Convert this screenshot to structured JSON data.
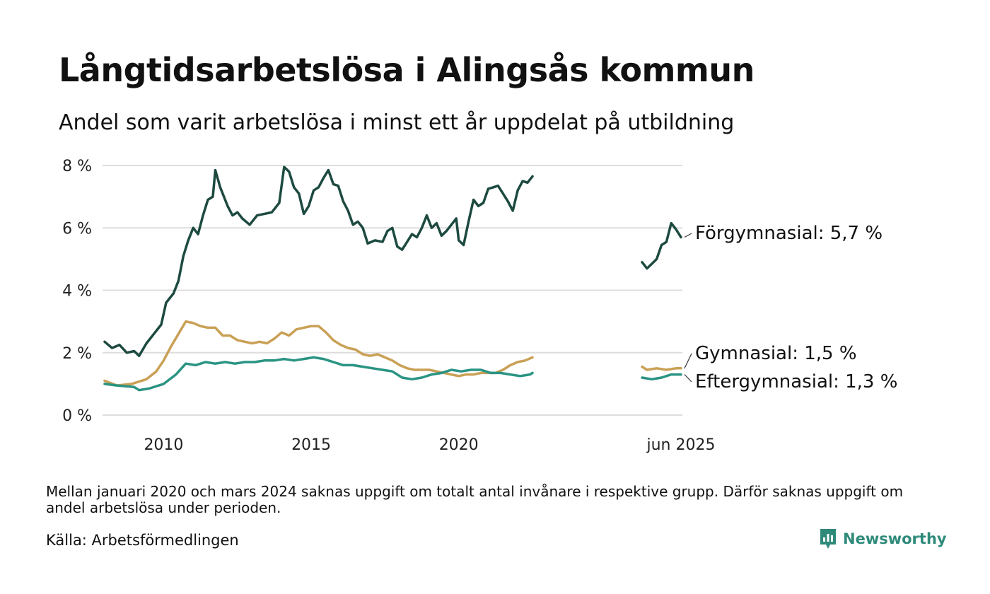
{
  "header": {
    "title": "Långtidsarbetslösa i Alingsås kommun",
    "subtitle": "Andel som varit arbetslösa i minst ett år uppdelat på utbildning"
  },
  "footer": {
    "note": "Mellan januari 2020 och mars 2024 saknas uppgift om totalt antal invånare i respektive grupp. Därför saknas uppgift om andel arbetslösa under perioden.",
    "source": "Källa: Arbetsförmedlingen",
    "brand": "Newsworthy",
    "brand_icon": "newsworthy-logo-icon",
    "brand_color": "#2f8a7a"
  },
  "chart_data": {
    "type": "line",
    "y_unit": "%",
    "ylim": [
      0,
      8
    ],
    "y_ticks": [
      {
        "value": 0,
        "label": "0 %"
      },
      {
        "value": 2,
        "label": "2 %"
      },
      {
        "value": 4,
        "label": "4 %"
      },
      {
        "value": 6,
        "label": "6 %"
      },
      {
        "value": 8,
        "label": "8 %"
      }
    ],
    "grid": true,
    "x_axis": "time",
    "x_range": [
      "2008-01",
      "2025-06"
    ],
    "broken_axis": {
      "after": "2020-12",
      "resumes": "2024-10"
    },
    "x_ticks": [
      {
        "date": "2010-01",
        "label": "2010"
      },
      {
        "date": "2015-01",
        "label": "2015"
      },
      {
        "date": "2020-01",
        "label": "2020"
      },
      {
        "date": "2025-06",
        "label": "jun 2025"
      }
    ],
    "series": [
      {
        "name": "Förgymnasial",
        "end_label": "Förgymnasial: 5,7 %",
        "color": "#1d4a40",
        "segments": [
          [
            [
              "2008-01",
              2.35
            ],
            [
              "2008-04",
              2.15
            ],
            [
              "2008-07",
              2.25
            ],
            [
              "2008-10",
              2.0
            ],
            [
              "2009-01",
              2.05
            ],
            [
              "2009-03",
              1.9
            ],
            [
              "2009-06",
              2.3
            ],
            [
              "2009-09",
              2.6
            ],
            [
              "2009-12",
              2.9
            ],
            [
              "2010-02",
              3.6
            ],
            [
              "2010-05",
              3.9
            ],
            [
              "2010-07",
              4.3
            ],
            [
              "2010-09",
              5.1
            ],
            [
              "2010-11",
              5.6
            ],
            [
              "2011-01",
              6.0
            ],
            [
              "2011-03",
              5.8
            ],
            [
              "2011-05",
              6.4
            ],
            [
              "2011-07",
              6.9
            ],
            [
              "2011-09",
              7.0
            ],
            [
              "2011-10",
              7.85
            ],
            [
              "2011-12",
              7.3
            ],
            [
              "2012-03",
              6.7
            ],
            [
              "2012-05",
              6.4
            ],
            [
              "2012-07",
              6.5
            ],
            [
              "2012-09",
              6.3
            ],
            [
              "2012-12",
              6.1
            ],
            [
              "2013-03",
              6.4
            ],
            [
              "2013-06",
              6.45
            ],
            [
              "2013-09",
              6.5
            ],
            [
              "2013-12",
              6.8
            ],
            [
              "2014-02",
              7.95
            ],
            [
              "2014-04",
              7.8
            ],
            [
              "2014-06",
              7.3
            ],
            [
              "2014-08",
              7.1
            ],
            [
              "2014-10",
              6.45
            ],
            [
              "2014-12",
              6.7
            ],
            [
              "2015-02",
              7.2
            ],
            [
              "2015-04",
              7.3
            ],
            [
              "2015-06",
              7.6
            ],
            [
              "2015-08",
              7.85
            ],
            [
              "2015-10",
              7.4
            ],
            [
              "2015-12",
              7.35
            ],
            [
              "2016-02",
              6.85
            ],
            [
              "2016-04",
              6.55
            ],
            [
              "2016-06",
              6.1
            ],
            [
              "2016-08",
              6.2
            ],
            [
              "2016-10",
              6.0
            ],
            [
              "2016-12",
              5.5
            ],
            [
              "2017-03",
              5.6
            ],
            [
              "2017-06",
              5.55
            ],
            [
              "2017-08",
              5.9
            ],
            [
              "2017-10",
              6.0
            ],
            [
              "2017-12",
              5.4
            ],
            [
              "2018-02",
              5.3
            ],
            [
              "2018-04",
              5.55
            ],
            [
              "2018-06",
              5.8
            ],
            [
              "2018-08",
              5.7
            ],
            [
              "2018-10",
              6.0
            ],
            [
              "2018-12",
              6.4
            ],
            [
              "2019-02",
              6.0
            ],
            [
              "2019-04",
              6.15
            ],
            [
              "2019-06",
              5.75
            ],
            [
              "2019-08",
              5.9
            ],
            [
              "2019-10",
              6.1
            ],
            [
              "2019-12",
              6.3
            ],
            [
              "2020-01",
              5.6
            ],
            [
              "2020-03",
              5.45
            ],
            [
              "2020-05",
              6.2
            ],
            [
              "2020-07",
              6.9
            ],
            [
              "2020-09",
              6.7
            ],
            [
              "2020-11",
              6.8
            ],
            [
              "2021-01",
              7.25
            ],
            [
              "2021-03",
              7.3
            ],
            [
              "2021-05",
              7.35
            ],
            [
              "2021-07",
              7.1
            ],
            [
              "2021-09",
              6.85
            ],
            [
              "2021-11",
              6.55
            ],
            [
              "2022-01",
              7.2
            ],
            [
              "2022-03",
              7.5
            ],
            [
              "2022-05",
              7.45
            ],
            [
              "2022-07",
              7.65
            ]
          ],
          [
            [
              "2024-10",
              4.9
            ],
            [
              "2024-11",
              4.7
            ],
            [
              "2024-12",
              4.85
            ],
            [
              "2025-01",
              5.0
            ],
            [
              "2025-02",
              5.45
            ],
            [
              "2025-03",
              5.55
            ],
            [
              "2025-04",
              6.15
            ],
            [
              "2025-05",
              5.95
            ],
            [
              "2025-06",
              5.7
            ]
          ]
        ]
      },
      {
        "name": "Gymnasial",
        "end_label": "Gymnasial: 1,5 %",
        "color": "#c9a055",
        "segments": [
          [
            [
              "2008-01",
              1.1
            ],
            [
              "2008-06",
              0.95
            ],
            [
              "2008-12",
              1.0
            ],
            [
              "2009-06",
              1.15
            ],
            [
              "2009-10",
              1.4
            ],
            [
              "2010-01",
              1.75
            ],
            [
              "2010-04",
              2.2
            ],
            [
              "2010-07",
              2.6
            ],
            [
              "2010-10",
              3.0
            ],
            [
              "2011-01",
              2.95
            ],
            [
              "2011-04",
              2.85
            ],
            [
              "2011-07",
              2.8
            ],
            [
              "2011-10",
              2.8
            ],
            [
              "2012-01",
              2.55
            ],
            [
              "2012-04",
              2.55
            ],
            [
              "2012-07",
              2.4
            ],
            [
              "2012-10",
              2.35
            ],
            [
              "2013-01",
              2.3
            ],
            [
              "2013-04",
              2.35
            ],
            [
              "2013-07",
              2.3
            ],
            [
              "2013-10",
              2.45
            ],
            [
              "2014-01",
              2.65
            ],
            [
              "2014-04",
              2.55
            ],
            [
              "2014-07",
              2.75
            ],
            [
              "2014-10",
              2.8
            ],
            [
              "2015-01",
              2.85
            ],
            [
              "2015-04",
              2.85
            ],
            [
              "2015-07",
              2.65
            ],
            [
              "2015-10",
              2.4
            ],
            [
              "2016-01",
              2.25
            ],
            [
              "2016-04",
              2.15
            ],
            [
              "2016-07",
              2.1
            ],
            [
              "2016-10",
              1.95
            ],
            [
              "2017-01",
              1.9
            ],
            [
              "2017-04",
              1.95
            ],
            [
              "2017-07",
              1.85
            ],
            [
              "2017-10",
              1.75
            ],
            [
              "2018-01",
              1.6
            ],
            [
              "2018-04",
              1.5
            ],
            [
              "2018-07",
              1.45
            ],
            [
              "2018-10",
              1.45
            ],
            [
              "2019-01",
              1.45
            ],
            [
              "2019-04",
              1.4
            ],
            [
              "2019-07",
              1.35
            ],
            [
              "2019-10",
              1.3
            ],
            [
              "2020-01",
              1.25
            ],
            [
              "2020-04",
              1.3
            ],
            [
              "2020-07",
              1.3
            ],
            [
              "2020-10",
              1.35
            ],
            [
              "2021-01",
              1.35
            ],
            [
              "2021-04",
              1.35
            ],
            [
              "2021-07",
              1.45
            ],
            [
              "2021-10",
              1.6
            ],
            [
              "2022-01",
              1.7
            ],
            [
              "2022-04",
              1.75
            ],
            [
              "2022-07",
              1.85
            ]
          ],
          [
            [
              "2024-10",
              1.55
            ],
            [
              "2024-11",
              1.45
            ],
            [
              "2025-01",
              1.5
            ],
            [
              "2025-03",
              1.45
            ],
            [
              "2025-05",
              1.5
            ],
            [
              "2025-06",
              1.5
            ]
          ]
        ]
      },
      {
        "name": "Eftergymnasial",
        "end_label": "Eftergymnasial: 1,3 %",
        "color": "#2a9483",
        "segments": [
          [
            [
              "2008-01",
              1.0
            ],
            [
              "2008-06",
              0.95
            ],
            [
              "2009-01",
              0.9
            ],
            [
              "2009-03",
              0.8
            ],
            [
              "2009-07",
              0.85
            ],
            [
              "2010-01",
              1.0
            ],
            [
              "2010-06",
              1.3
            ],
            [
              "2010-10",
              1.65
            ],
            [
              "2011-02",
              1.6
            ],
            [
              "2011-06",
              1.7
            ],
            [
              "2011-10",
              1.65
            ],
            [
              "2012-02",
              1.7
            ],
            [
              "2012-06",
              1.65
            ],
            [
              "2012-10",
              1.7
            ],
            [
              "2013-02",
              1.7
            ],
            [
              "2013-06",
              1.75
            ],
            [
              "2013-10",
              1.75
            ],
            [
              "2014-02",
              1.8
            ],
            [
              "2014-06",
              1.75
            ],
            [
              "2014-10",
              1.8
            ],
            [
              "2015-02",
              1.85
            ],
            [
              "2015-06",
              1.8
            ],
            [
              "2015-10",
              1.7
            ],
            [
              "2016-02",
              1.6
            ],
            [
              "2016-06",
              1.6
            ],
            [
              "2016-10",
              1.55
            ],
            [
              "2017-02",
              1.5
            ],
            [
              "2017-06",
              1.45
            ],
            [
              "2017-10",
              1.4
            ],
            [
              "2018-02",
              1.2
            ],
            [
              "2018-06",
              1.15
            ],
            [
              "2018-10",
              1.2
            ],
            [
              "2019-02",
              1.3
            ],
            [
              "2019-06",
              1.35
            ],
            [
              "2019-10",
              1.45
            ],
            [
              "2020-02",
              1.4
            ],
            [
              "2020-06",
              1.45
            ],
            [
              "2020-10",
              1.45
            ],
            [
              "2021-02",
              1.35
            ],
            [
              "2021-06",
              1.35
            ],
            [
              "2021-10",
              1.3
            ],
            [
              "2022-02",
              1.25
            ],
            [
              "2022-06",
              1.3
            ],
            [
              "2022-07",
              1.35
            ]
          ],
          [
            [
              "2024-10",
              1.2
            ],
            [
              "2024-12",
              1.15
            ],
            [
              "2025-02",
              1.2
            ],
            [
              "2025-04",
              1.3
            ],
            [
              "2025-06",
              1.3
            ]
          ]
        ]
      }
    ]
  }
}
